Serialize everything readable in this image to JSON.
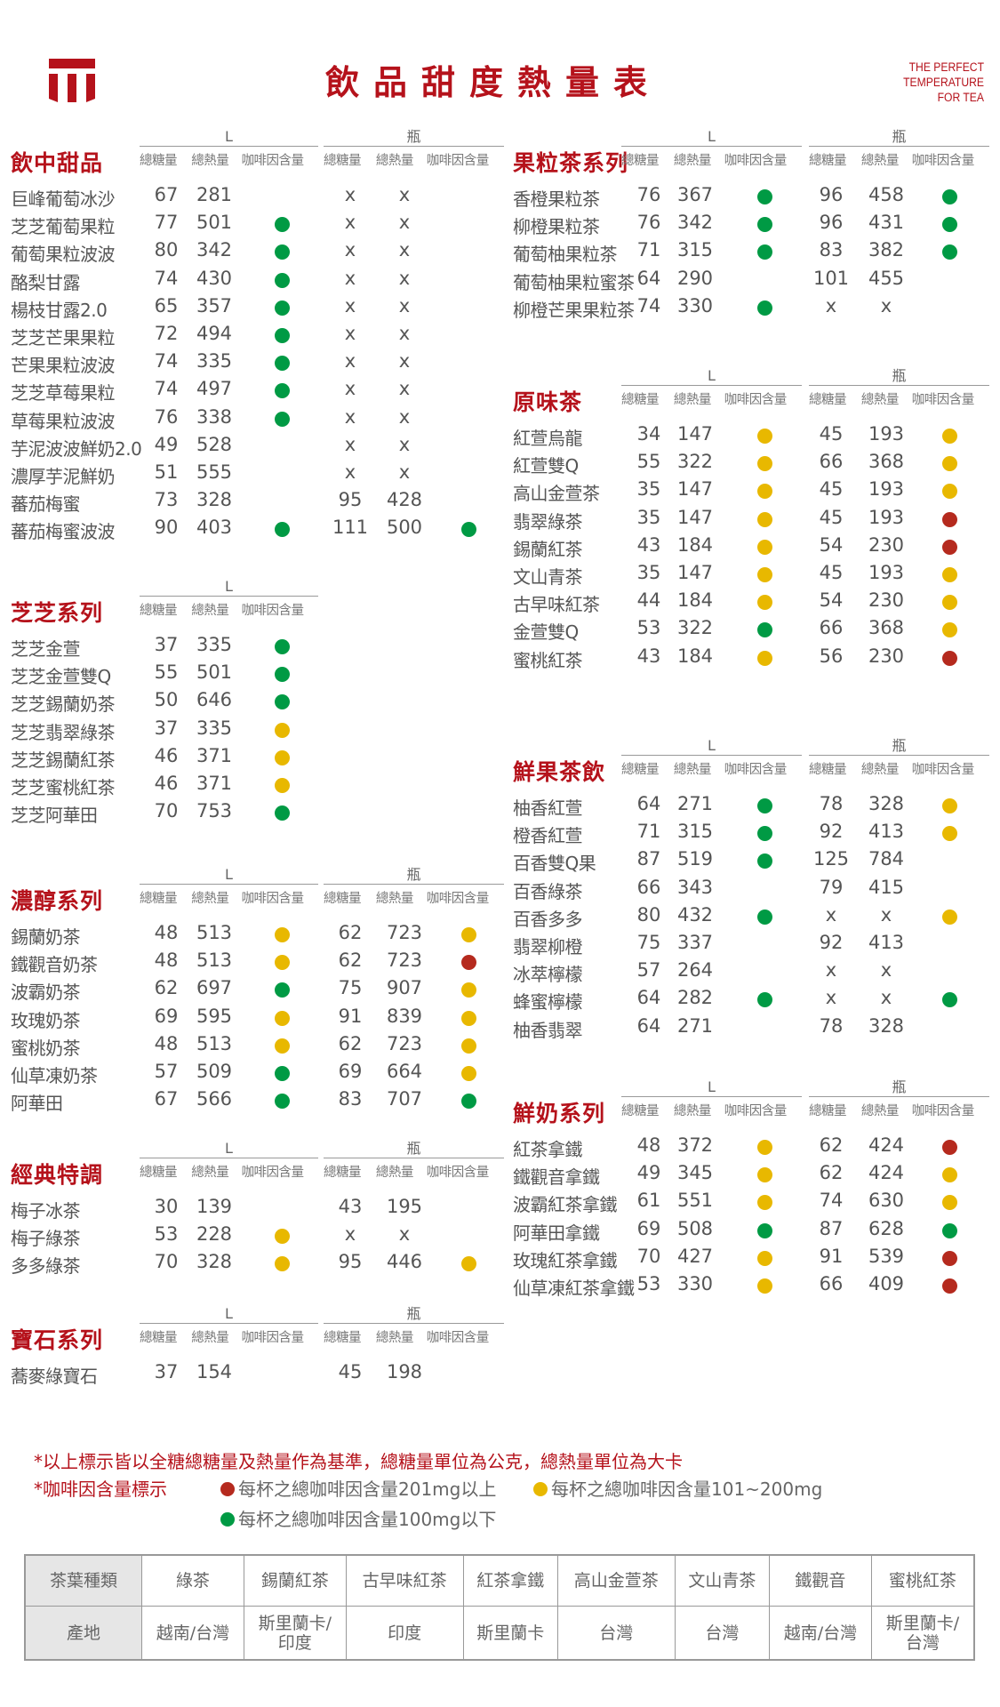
{
  "header": {
    "title": "飲品甜度熱量表",
    "tagline": [
      "THE PERFECT",
      "TEMPERATURE",
      "FOR TEA"
    ],
    "brand_color": "#b5121b"
  },
  "labels": {
    "size_l": "L",
    "size_bottle": "瓶",
    "sugar": "總糖量",
    "calories": "總熱量",
    "caffeine": "咖啡因含量"
  },
  "caffeine_colors": {
    "red": "#b52a1e",
    "yellow": "#e8b800",
    "green": "#009a44"
  },
  "sections": [
    {
      "title": "飲中甜品",
      "column": "left",
      "bottle": true,
      "rows": [
        {
          "name": "巨峰葡萄冰沙",
          "l": [
            "67",
            "281",
            ""
          ],
          "b": [
            "x",
            "x",
            ""
          ]
        },
        {
          "name": "芝芝葡萄果粒",
          "l": [
            "77",
            "501",
            "green"
          ],
          "b": [
            "x",
            "x",
            ""
          ]
        },
        {
          "name": "葡萄果粒波波",
          "l": [
            "80",
            "342",
            "green"
          ],
          "b": [
            "x",
            "x",
            ""
          ]
        },
        {
          "name": "酪梨甘露",
          "l": [
            "74",
            "430",
            "green"
          ],
          "b": [
            "x",
            "x",
            ""
          ]
        },
        {
          "name": "楊枝甘露2.0",
          "l": [
            "65",
            "357",
            "green"
          ],
          "b": [
            "x",
            "x",
            ""
          ]
        },
        {
          "name": "芝芝芒果果粒",
          "l": [
            "72",
            "494",
            "green"
          ],
          "b": [
            "x",
            "x",
            ""
          ]
        },
        {
          "name": "芒果果粒波波",
          "l": [
            "74",
            "335",
            "green"
          ],
          "b": [
            "x",
            "x",
            ""
          ]
        },
        {
          "name": "芝芝草莓果粒",
          "l": [
            "74",
            "497",
            "green"
          ],
          "b": [
            "x",
            "x",
            ""
          ]
        },
        {
          "name": "草莓果粒波波",
          "l": [
            "76",
            "338",
            "green"
          ],
          "b": [
            "x",
            "x",
            ""
          ]
        },
        {
          "name": "芋泥波波鮮奶2.0",
          "l": [
            "49",
            "528",
            ""
          ],
          "b": [
            "x",
            "x",
            ""
          ]
        },
        {
          "name": "濃厚芋泥鮮奶",
          "l": [
            "51",
            "555",
            ""
          ],
          "b": [
            "x",
            "x",
            ""
          ]
        },
        {
          "name": "蕃茄梅蜜",
          "l": [
            "73",
            "328",
            ""
          ],
          "b": [
            "95",
            "428",
            ""
          ]
        },
        {
          "name": "蕃茄梅蜜波波",
          "l": [
            "90",
            "403",
            "green"
          ],
          "b": [
            "111",
            "500",
            "green"
          ]
        }
      ]
    },
    {
      "title": "芝芝系列",
      "column": "left",
      "bottle": false,
      "rows": [
        {
          "name": "芝芝金萱",
          "l": [
            "37",
            "335",
            "green"
          ]
        },
        {
          "name": "芝芝金萱雙Q",
          "l": [
            "55",
            "501",
            "green"
          ]
        },
        {
          "name": "芝芝錫蘭奶茶",
          "l": [
            "50",
            "646",
            "green"
          ]
        },
        {
          "name": "芝芝翡翠綠茶",
          "l": [
            "37",
            "335",
            "yellow"
          ]
        },
        {
          "name": "芝芝錫蘭紅茶",
          "l": [
            "46",
            "371",
            "yellow"
          ]
        },
        {
          "name": "芝芝蜜桃紅茶",
          "l": [
            "46",
            "371",
            "yellow"
          ]
        },
        {
          "name": "芝芝阿華田",
          "l": [
            "70",
            "753",
            "green"
          ]
        }
      ]
    },
    {
      "title": "濃醇系列",
      "column": "left",
      "bottle": true,
      "rows": [
        {
          "name": "錫蘭奶茶",
          "l": [
            "48",
            "513",
            "yellow"
          ],
          "b": [
            "62",
            "723",
            "yellow"
          ]
        },
        {
          "name": "鐵觀音奶茶",
          "l": [
            "48",
            "513",
            "yellow"
          ],
          "b": [
            "62",
            "723",
            "red"
          ]
        },
        {
          "name": "波霸奶茶",
          "l": [
            "62",
            "697",
            "green"
          ],
          "b": [
            "75",
            "907",
            "yellow"
          ]
        },
        {
          "name": "玫瑰奶茶",
          "l": [
            "69",
            "595",
            "yellow"
          ],
          "b": [
            "91",
            "839",
            "yellow"
          ]
        },
        {
          "name": "蜜桃奶茶",
          "l": [
            "48",
            "513",
            "yellow"
          ],
          "b": [
            "62",
            "723",
            "yellow"
          ]
        },
        {
          "name": "仙草凍奶茶",
          "l": [
            "57",
            "509",
            "green"
          ],
          "b": [
            "69",
            "664",
            "yellow"
          ]
        },
        {
          "name": "阿華田",
          "l": [
            "67",
            "566",
            "green"
          ],
          "b": [
            "83",
            "707",
            "green"
          ]
        }
      ]
    },
    {
      "title": "經典特調",
      "column": "left",
      "bottle": true,
      "rows": [
        {
          "name": "梅子冰茶",
          "l": [
            "30",
            "139",
            ""
          ],
          "b": [
            "43",
            "195",
            ""
          ]
        },
        {
          "name": "梅子綠茶",
          "l": [
            "53",
            "228",
            "yellow"
          ],
          "b": [
            "x",
            "x",
            ""
          ]
        },
        {
          "name": "多多綠茶",
          "l": [
            "70",
            "328",
            "yellow"
          ],
          "b": [
            "95",
            "446",
            "yellow"
          ]
        }
      ]
    },
    {
      "title": "寶石系列",
      "column": "left",
      "bottle": true,
      "rows": [
        {
          "name": "蕎麥綠寶石",
          "l": [
            "37",
            "154",
            ""
          ],
          "b": [
            "45",
            "198",
            ""
          ]
        }
      ]
    },
    {
      "title": "果粒茶系列",
      "column": "right",
      "bottle": true,
      "rows": [
        {
          "name": "香橙果粒茶",
          "l": [
            "76",
            "367",
            "green"
          ],
          "b": [
            "96",
            "458",
            "green"
          ]
        },
        {
          "name": "柳橙果粒茶",
          "l": [
            "76",
            "342",
            "green"
          ],
          "b": [
            "96",
            "431",
            "green"
          ]
        },
        {
          "name": "葡萄柚果粒茶",
          "l": [
            "71",
            "315",
            "green"
          ],
          "b": [
            "83",
            "382",
            "green"
          ]
        },
        {
          "name": "葡萄柚果粒蜜茶",
          "l": [
            "64",
            "290",
            ""
          ],
          "b": [
            "101",
            "455",
            ""
          ]
        },
        {
          "name": "柳橙芒果果粒茶",
          "l": [
            "74",
            "330",
            "green"
          ],
          "b": [
            "x",
            "x",
            ""
          ]
        }
      ]
    },
    {
      "title": "原味茶",
      "column": "right",
      "bottle": true,
      "rows": [
        {
          "name": "紅萱烏龍",
          "l": [
            "34",
            "147",
            "yellow"
          ],
          "b": [
            "45",
            "193",
            "yellow"
          ]
        },
        {
          "name": "紅萱雙Q",
          "l": [
            "55",
            "322",
            "yellow"
          ],
          "b": [
            "66",
            "368",
            "yellow"
          ]
        },
        {
          "name": "高山金萱茶",
          "l": [
            "35",
            "147",
            "yellow"
          ],
          "b": [
            "45",
            "193",
            "yellow"
          ]
        },
        {
          "name": "翡翠綠茶",
          "l": [
            "35",
            "147",
            "yellow"
          ],
          "b": [
            "45",
            "193",
            "red"
          ]
        },
        {
          "name": "錫蘭紅茶",
          "l": [
            "43",
            "184",
            "yellow"
          ],
          "b": [
            "54",
            "230",
            "red"
          ]
        },
        {
          "name": "文山青茶",
          "l": [
            "35",
            "147",
            "yellow"
          ],
          "b": [
            "45",
            "193",
            "yellow"
          ]
        },
        {
          "name": "古早味紅茶",
          "l": [
            "44",
            "184",
            "yellow"
          ],
          "b": [
            "54",
            "230",
            "yellow"
          ]
        },
        {
          "name": "金萱雙Q",
          "l": [
            "53",
            "322",
            "green"
          ],
          "b": [
            "66",
            "368",
            "yellow"
          ]
        },
        {
          "name": "蜜桃紅茶",
          "l": [
            "43",
            "184",
            "yellow"
          ],
          "b": [
            "56",
            "230",
            "red"
          ]
        }
      ]
    },
    {
      "title": "鮮果茶飲",
      "column": "right",
      "bottle": true,
      "rows": [
        {
          "name": "柚香紅萱",
          "l": [
            "64",
            "271",
            "green"
          ],
          "b": [
            "78",
            "328",
            "yellow"
          ]
        },
        {
          "name": "橙香紅萱",
          "l": [
            "71",
            "315",
            "green"
          ],
          "b": [
            "92",
            "413",
            "yellow"
          ]
        },
        {
          "name": "百香雙Q果",
          "l": [
            "87",
            "519",
            "green"
          ],
          "b": [
            "125",
            "784",
            ""
          ]
        },
        {
          "name": "百香綠茶",
          "l": [
            "66",
            "343",
            ""
          ],
          "b": [
            "79",
            "415",
            ""
          ]
        },
        {
          "name": "百香多多",
          "l": [
            "80",
            "432",
            "green"
          ],
          "b": [
            "x",
            "x",
            "yellow"
          ]
        },
        {
          "name": "翡翠柳橙",
          "l": [
            "75",
            "337",
            ""
          ],
          "b": [
            "92",
            "413",
            ""
          ]
        },
        {
          "name": "冰萃檸檬",
          "l": [
            "57",
            "264",
            ""
          ],
          "b": [
            "x",
            "x",
            ""
          ]
        },
        {
          "name": "蜂蜜檸檬",
          "l": [
            "64",
            "282",
            "green"
          ],
          "b": [
            "x",
            "x",
            "green"
          ]
        },
        {
          "name": "柚香翡翠",
          "l": [
            "64",
            "271",
            ""
          ],
          "b": [
            "78",
            "328",
            ""
          ]
        }
      ]
    },
    {
      "title": "鮮奶系列",
      "column": "right",
      "bottle": true,
      "rows": [
        {
          "name": "紅茶拿鐵",
          "l": [
            "48",
            "372",
            "yellow"
          ],
          "b": [
            "62",
            "424",
            "red"
          ]
        },
        {
          "name": "鐵觀音拿鐵",
          "l": [
            "49",
            "345",
            "yellow"
          ],
          "b": [
            "62",
            "424",
            "yellow"
          ]
        },
        {
          "name": "波霸紅茶拿鐵",
          "l": [
            "61",
            "551",
            "yellow"
          ],
          "b": [
            "74",
            "630",
            "yellow"
          ]
        },
        {
          "name": "阿華田拿鐵",
          "l": [
            "69",
            "508",
            "green"
          ],
          "b": [
            "87",
            "628",
            "green"
          ]
        },
        {
          "name": "玫瑰紅茶拿鐵",
          "l": [
            "70",
            "427",
            "yellow"
          ],
          "b": [
            "91",
            "539",
            "red"
          ]
        },
        {
          "name": "仙草凍紅茶拿鐵",
          "l": [
            "53",
            "330",
            "yellow"
          ],
          "b": [
            "66",
            "409",
            "red"
          ]
        }
      ]
    }
  ],
  "notes": {
    "line1": "*以上標示皆以全糖總糖量及熱量作為基準，總糖量單位為公克，總熱量單位為大卡",
    "legend_title": "*咖啡因含量標示",
    "legend": [
      {
        "level": "red",
        "text": "每杯之總咖啡因含量201mg以上"
      },
      {
        "level": "yellow",
        "text": "每杯之總咖啡因含量101~200mg"
      },
      {
        "level": "green",
        "text": "每杯之總咖啡因含量100mg以下"
      }
    ]
  },
  "origin_table": {
    "tea_label": "茶葉種類",
    "origin_label": "產地",
    "teas": [
      "綠茶",
      "錫蘭紅茶",
      "古早味紅茶",
      "紅茶拿鐵",
      "高山金萱茶",
      "文山青茶",
      "鐵觀音",
      "蜜桃紅茶"
    ],
    "origins": [
      "越南/台灣",
      "斯里蘭卡/印度",
      "印度",
      "斯里蘭卡",
      "台灣",
      "台灣",
      "越南/台灣",
      "斯里蘭卡/台灣"
    ]
  }
}
